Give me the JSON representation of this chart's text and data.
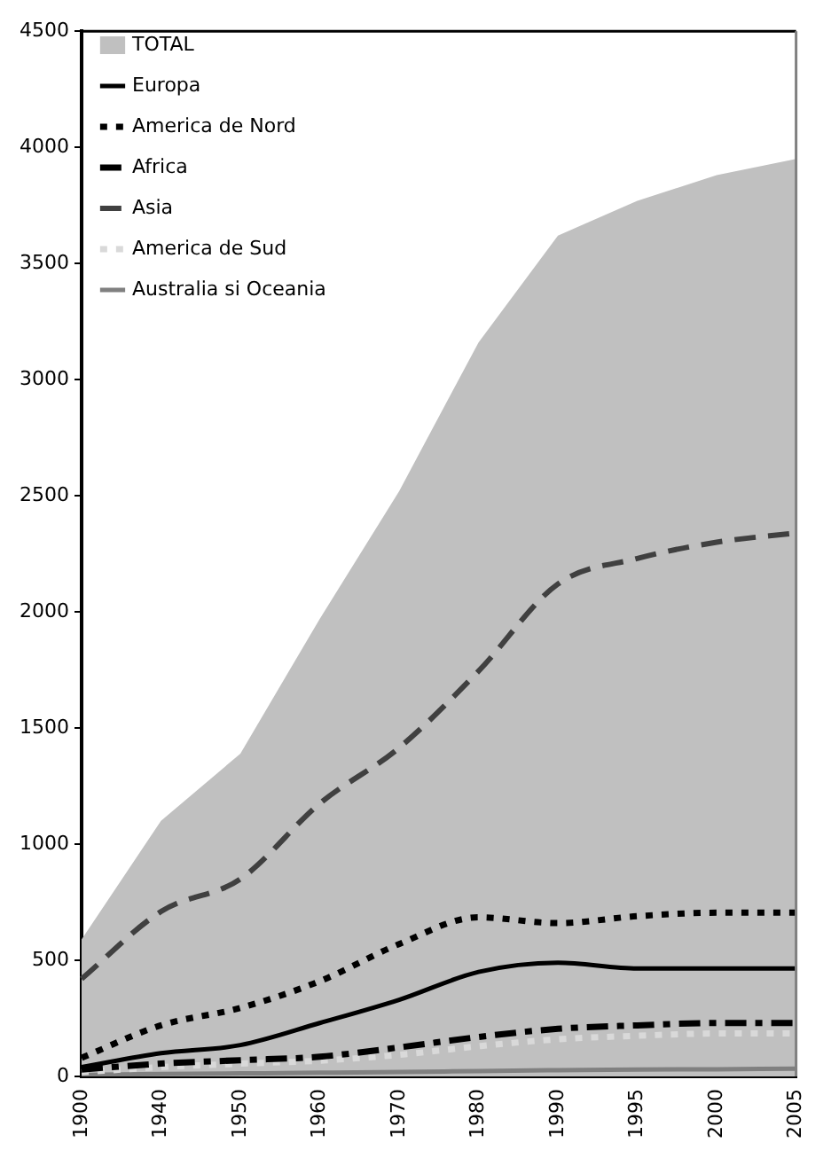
{
  "chart_data": {
    "type": "line",
    "categories": [
      "1900",
      "1940",
      "1950",
      "1960",
      "1970",
      "1980",
      "1990",
      "1995",
      "2000",
      "2005"
    ],
    "series": [
      {
        "name": "TOTAL",
        "type": "area",
        "color": "#c0c0c0",
        "values": [
          590,
          1100,
          1390,
          1970,
          2520,
          3160,
          3620,
          3770,
          3880,
          3950
        ]
      },
      {
        "name": "Europa",
        "color": "#000000",
        "line_style": "solid",
        "values": [
          40,
          100,
          135,
          230,
          330,
          450,
          490,
          465,
          465,
          465
        ]
      },
      {
        "name": "America de Nord",
        "color": "#000000",
        "line_style": "dotted",
        "values": [
          80,
          220,
          295,
          410,
          570,
          685,
          660,
          690,
          705,
          705
        ]
      },
      {
        "name": "Africa",
        "color": "#000000",
        "line_style": "dashdot",
        "values": [
          30,
          55,
          70,
          85,
          125,
          170,
          205,
          220,
          230,
          230
        ]
      },
      {
        "name": "Asia",
        "color": "#404040",
        "line_style": "dashed",
        "values": [
          420,
          710,
          850,
          1175,
          1415,
          1745,
          2120,
          2230,
          2300,
          2340
        ]
      },
      {
        "name": "America de Sud",
        "color": "#d9d9d9",
        "line_style": "dotted",
        "values": [
          18,
          40,
          55,
          68,
          93,
          130,
          160,
          175,
          185,
          185
        ]
      },
      {
        "name": "Australia si Oceania",
        "color": "#808080",
        "line_style": "solid",
        "values": [
          6,
          11,
          13,
          16,
          19,
          23,
          27,
          30,
          31,
          33
        ]
      }
    ],
    "ylim": [
      0,
      4500
    ],
    "yticks": [
      0,
      500,
      1000,
      1500,
      2000,
      2500,
      3000,
      3500,
      4000,
      4500
    ],
    "grid": false,
    "legend": "top left"
  }
}
